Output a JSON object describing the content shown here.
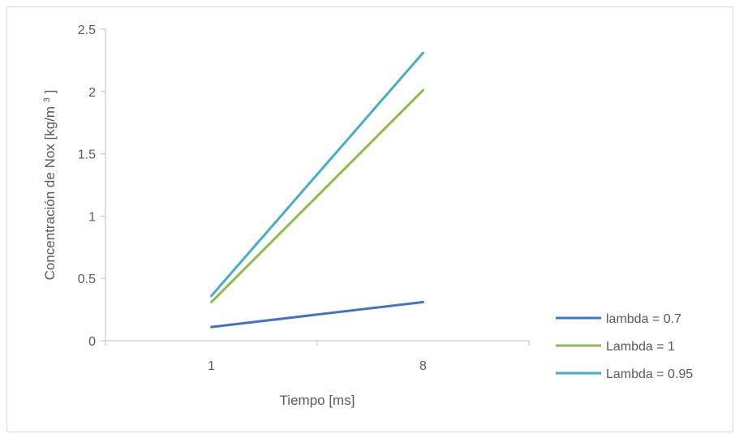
{
  "chart_data": {
    "type": "line",
    "title": "",
    "xlabel": "Tiempo [ms]",
    "ylabel": "Concentración de Nox [kg/m",
    "ylabel_sup": "3",
    "ylabel_end": "]",
    "categories": [
      "1",
      "8"
    ],
    "ylim": [
      0,
      2.5
    ],
    "yticks": [
      "0",
      "0.5",
      "1",
      "1.5",
      "2",
      "2.5"
    ],
    "grid": false,
    "legend_position": "right",
    "series": [
      {
        "name": "lambda = 0.7",
        "color": "#4472C4",
        "values": [
          0.11,
          0.31
        ]
      },
      {
        "name": "Lambda = 1",
        "color": "#8DBB4B",
        "values": [
          0.31,
          2.01
        ]
      },
      {
        "name": "Lambda = 0.95",
        "color": "#4AACC6",
        "values": [
          0.36,
          2.31
        ]
      }
    ]
  }
}
